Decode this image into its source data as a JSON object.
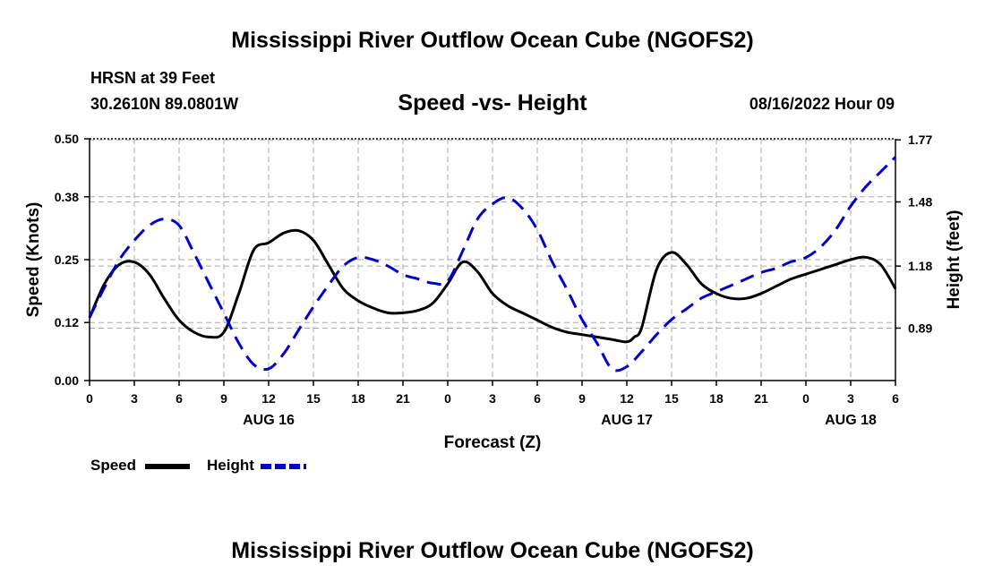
{
  "header": {
    "main_title": "Mississippi River Outflow Ocean Cube (NGOFS2)",
    "station": "HRSN at 39 Feet",
    "coordinates": "30.2610N  89.0801W",
    "subtitle": "Speed -vs- Height",
    "datetime": "08/16/2022 Hour 09"
  },
  "footer": {
    "repeat_title": "Mississippi River Outflow Ocean Cube (NGOFS2)"
  },
  "legend": {
    "speed_label": "Speed",
    "height_label": "Height"
  },
  "chart_data": {
    "type": "line",
    "title": "Speed -vs- Height",
    "xlabel": "Forecast (Z)",
    "ylabel": "Speed (Knots)",
    "y2label": "Height (feet)",
    "xlim": [
      0,
      54
    ],
    "ylim": [
      0,
      0.5
    ],
    "y2lim": [
      0.645,
      1.775
    ],
    "yticks": [
      "0.00",
      "0.12",
      "0.25",
      "0.38",
      "0.50"
    ],
    "y2ticks": [
      "0.89",
      "1.18",
      "1.48",
      "1.77"
    ],
    "xtick_labels": [
      "0",
      "3",
      "6",
      "9",
      "12",
      "15",
      "18",
      "21",
      "0",
      "3",
      "6",
      "9",
      "12",
      "15",
      "18",
      "21",
      "0",
      "3",
      "6"
    ],
    "day_labels": [
      {
        "hour": 12,
        "label": "AUG 16"
      },
      {
        "hour": 36,
        "label": "AUG 17"
      },
      {
        "hour": 51,
        "label": "AUG 18"
      }
    ],
    "grid": true,
    "series": [
      {
        "name": "Speed",
        "color": "#000000",
        "style": "solid",
        "x": [
          0,
          1,
          2,
          3,
          4,
          5,
          6,
          7,
          8,
          9,
          10,
          11,
          12,
          13,
          14,
          15,
          16,
          17,
          18,
          19,
          20,
          21,
          22,
          23,
          24,
          25,
          26,
          27,
          28,
          29,
          30,
          31,
          32,
          33,
          34,
          35,
          36,
          36.5,
          37,
          38,
          39,
          40,
          41,
          42,
          43,
          44,
          45,
          46,
          47,
          48,
          49,
          50,
          51,
          52,
          53,
          54
        ],
        "values": [
          0.13,
          0.2,
          0.24,
          0.245,
          0.22,
          0.17,
          0.125,
          0.1,
          0.09,
          0.1,
          0.18,
          0.27,
          0.285,
          0.305,
          0.31,
          0.29,
          0.24,
          0.19,
          0.165,
          0.15,
          0.14,
          0.14,
          0.145,
          0.16,
          0.2,
          0.245,
          0.225,
          0.18,
          0.155,
          0.14,
          0.125,
          0.11,
          0.1,
          0.095,
          0.09,
          0.085,
          0.08,
          0.09,
          0.11,
          0.23,
          0.265,
          0.24,
          0.2,
          0.18,
          0.17,
          0.17,
          0.18,
          0.195,
          0.21,
          0.22,
          0.23,
          0.24,
          0.25,
          0.255,
          0.24,
          0.19
        ]
      },
      {
        "name": "Height",
        "color": "#0000cc",
        "style": "dashed",
        "axis": "right",
        "x": [
          0,
          1,
          2,
          3,
          4,
          5,
          6,
          7,
          8,
          9,
          10,
          11,
          12,
          13,
          14,
          15,
          16,
          17,
          18,
          19,
          20,
          21,
          22,
          23,
          24,
          25,
          26,
          27,
          28,
          29,
          30,
          31,
          32,
          33,
          34,
          35,
          36,
          37,
          38,
          39,
          40,
          41,
          42,
          43,
          44,
          45,
          46,
          47,
          48,
          49,
          50,
          51,
          52,
          53,
          54
        ],
        "values": [
          0.94,
          1.08,
          1.21,
          1.3,
          1.37,
          1.4,
          1.37,
          1.24,
          1.1,
          0.96,
          0.82,
          0.72,
          0.7,
          0.77,
          0.88,
          0.99,
          1.09,
          1.18,
          1.22,
          1.21,
          1.18,
          1.14,
          1.12,
          1.1,
          1.11,
          1.25,
          1.4,
          1.47,
          1.5,
          1.45,
          1.35,
          1.2,
          1.07,
          0.93,
          0.82,
          0.7,
          0.71,
          0.78,
          0.86,
          0.93,
          0.98,
          1.03,
          1.06,
          1.09,
          1.12,
          1.15,
          1.17,
          1.2,
          1.22,
          1.27,
          1.35,
          1.46,
          1.55,
          1.62,
          1.69
        ]
      }
    ]
  }
}
